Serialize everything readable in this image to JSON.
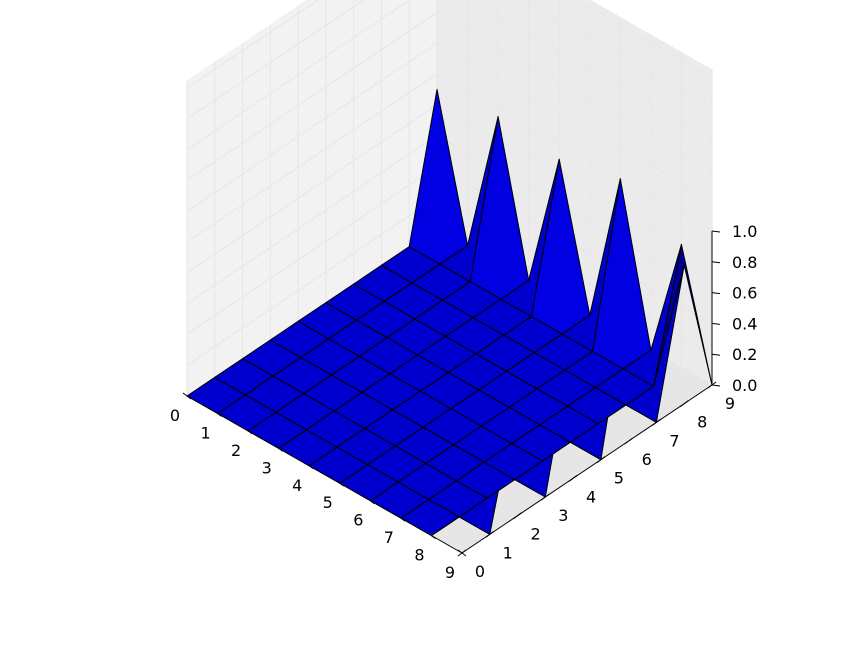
{
  "chart_data": {
    "type": "surface3d",
    "title": "",
    "xlabel": "",
    "ylabel": "",
    "zlabel": "",
    "x_ticks": [
      "0",
      "1",
      "2",
      "3",
      "4",
      "5",
      "6",
      "7",
      "8",
      "9"
    ],
    "y_ticks": [
      "0",
      "1",
      "2",
      "3",
      "4",
      "5",
      "6",
      "7",
      "8",
      "9"
    ],
    "z_ticks": [
      "0.0",
      "0.2",
      "0.4",
      "0.6",
      "0.8",
      "1.0"
    ],
    "xlim": [
      0,
      9
    ],
    "ylim": [
      0,
      9
    ],
    "zlim": [
      0,
      1
    ],
    "view": "elevated isometric, x axis front-left, y axis front-right",
    "grid": true,
    "surface_color": "#0000ff",
    "edge_color": "#000000",
    "pane_color": "#f2f2f2",
    "z": [
      [
        0.0,
        0.0,
        0.0,
        0.0,
        0.0,
        0.0,
        0.0,
        0.0,
        0.0,
        0.9
      ],
      [
        0.0,
        0.0,
        0.0,
        0.0,
        0.0,
        0.0,
        0.0,
        0.0,
        0.0,
        0.0
      ],
      [
        0.0,
        0.0,
        0.0,
        0.0,
        0.0,
        0.0,
        0.0,
        0.0,
        0.0,
        0.95
      ],
      [
        0.0,
        0.0,
        0.0,
        0.0,
        0.0,
        0.0,
        0.0,
        0.0,
        0.0,
        0.0
      ],
      [
        0.0,
        0.0,
        0.0,
        0.0,
        0.0,
        0.0,
        0.0,
        0.0,
        0.0,
        0.9
      ],
      [
        0.0,
        0.0,
        0.0,
        0.0,
        0.0,
        0.0,
        0.0,
        0.0,
        0.0,
        0.0
      ],
      [
        0.0,
        0.0,
        0.0,
        0.0,
        0.0,
        0.0,
        0.0,
        0.0,
        0.0,
        1.0
      ],
      [
        0.0,
        0.0,
        0.0,
        0.0,
        0.0,
        0.0,
        0.0,
        0.0,
        0.0,
        0.0
      ],
      [
        0.0,
        0.0,
        0.0,
        0.0,
        0.0,
        0.0,
        0.0,
        0.0,
        0.0,
        0.8
      ],
      [
        0.9,
        0.0,
        0.8,
        0.0,
        0.9,
        0.0,
        1.0,
        0.0,
        0.9,
        0.0
      ]
    ]
  }
}
